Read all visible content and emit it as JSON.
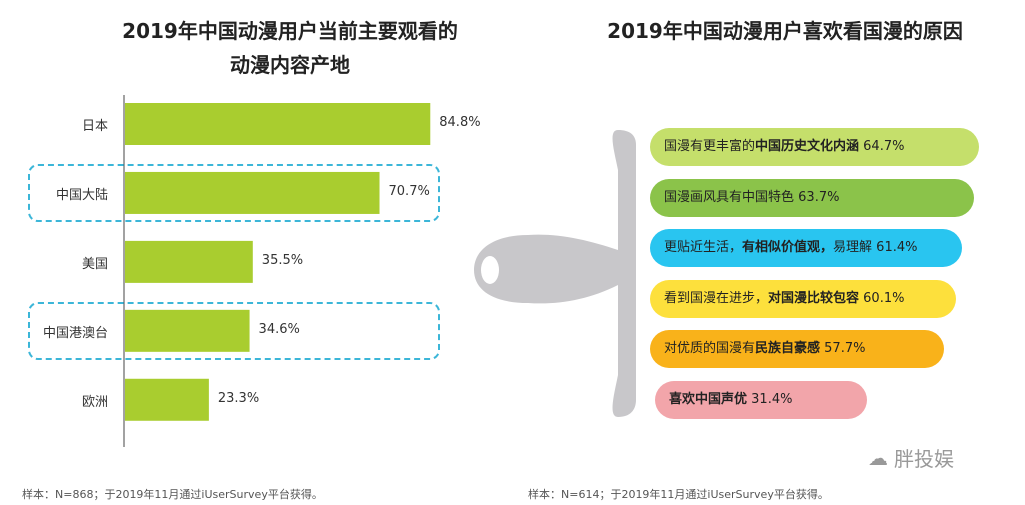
{
  "left_title_line1": "2019年中国动漫用户当前主要观看的",
  "left_title_line2": "动漫内容产地",
  "right_title": "2019年中国动漫用户喜欢看国漫的原因",
  "left_note": "样本：N=868；于2019年11月通过iUserSurvey平台获得。",
  "right_note": "样本：N=614；于2019年11月通过iUserSurvey平台获得。",
  "watermark": "胖投娱",
  "colors": {
    "bar": "#a9cd2f",
    "dash": "#3cb6d8",
    "spatula": "#c8c7ca"
  },
  "chart_data": [
    {
      "type": "bar",
      "orientation": "horizontal",
      "title": "2019年中国动漫用户当前主要观看的动漫内容产地",
      "categories": [
        "日本",
        "中国大陆",
        "美国",
        "中国港澳台",
        "欧洲"
      ],
      "values": [
        84.8,
        70.7,
        35.5,
        34.6,
        23.3
      ],
      "value_labels": [
        "84.8%",
        "70.7%",
        "35.5%",
        "34.6%",
        "23.3%"
      ],
      "highlighted": [
        "中国大陆",
        "中国港澳台"
      ],
      "xlim": [
        0,
        100
      ],
      "grid": false
    },
    {
      "type": "bar",
      "orientation": "horizontal",
      "title": "2019年中国动漫用户喜欢看国漫的原因",
      "categories": [
        "国漫有更丰富的中国历史文化内涵",
        "国漫画风具有中国特色",
        "更贴近生活，有相似价值观，易理解",
        "看到国漫在进步，对国漫比较包容",
        "对优质的国漫有民族自豪感",
        "喜欢中国声优"
      ],
      "values": [
        64.7,
        63.7,
        61.4,
        60.1,
        57.7,
        31.4
      ],
      "value_labels": [
        "64.7%",
        "63.7%",
        "61.4%",
        "60.1%",
        "57.7%",
        "31.4%"
      ],
      "colors": [
        "#c5df6b",
        "#8bc34a",
        "#29c5f0",
        "#fde03c",
        "#f9b21a",
        "#f2a5aa"
      ],
      "grid": false
    }
  ]
}
